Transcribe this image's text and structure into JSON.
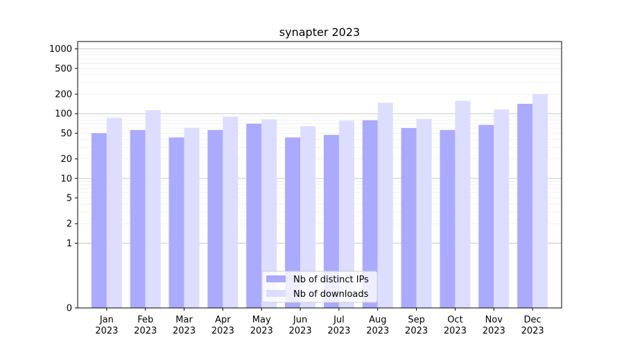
{
  "chart_data": {
    "type": "bar",
    "title": "synapter 2023",
    "xlabel": "",
    "ylabel": "",
    "y_scale": "symlog",
    "ylim": [
      0,
      1300
    ],
    "y_ticks": [
      0,
      1,
      2,
      5,
      10,
      20,
      50,
      100,
      200,
      500,
      1000
    ],
    "grid": "horizontal",
    "legend_position": "lower-center",
    "categories": [
      {
        "month": "Jan",
        "year": "2023"
      },
      {
        "month": "Feb",
        "year": "2023"
      },
      {
        "month": "Mar",
        "year": "2023"
      },
      {
        "month": "Apr",
        "year": "2023"
      },
      {
        "month": "May",
        "year": "2023"
      },
      {
        "month": "Jun",
        "year": "2023"
      },
      {
        "month": "Jul",
        "year": "2023"
      },
      {
        "month": "Aug",
        "year": "2023"
      },
      {
        "month": "Sep",
        "year": "2023"
      },
      {
        "month": "Oct",
        "year": "2023"
      },
      {
        "month": "Nov",
        "year": "2023"
      },
      {
        "month": "Dec",
        "year": "2023"
      }
    ],
    "series": [
      {
        "name": "Nb of distinct IPs",
        "color": "#aaaaff",
        "values": [
          50,
          56,
          43,
          56,
          70,
          43,
          47,
          79,
          60,
          56,
          67,
          142
        ]
      },
      {
        "name": "Nb of downloads",
        "color": "#ddddff",
        "values": [
          86,
          113,
          60,
          89,
          82,
          64,
          78,
          147,
          83,
          158,
          116,
          200
        ]
      }
    ]
  }
}
